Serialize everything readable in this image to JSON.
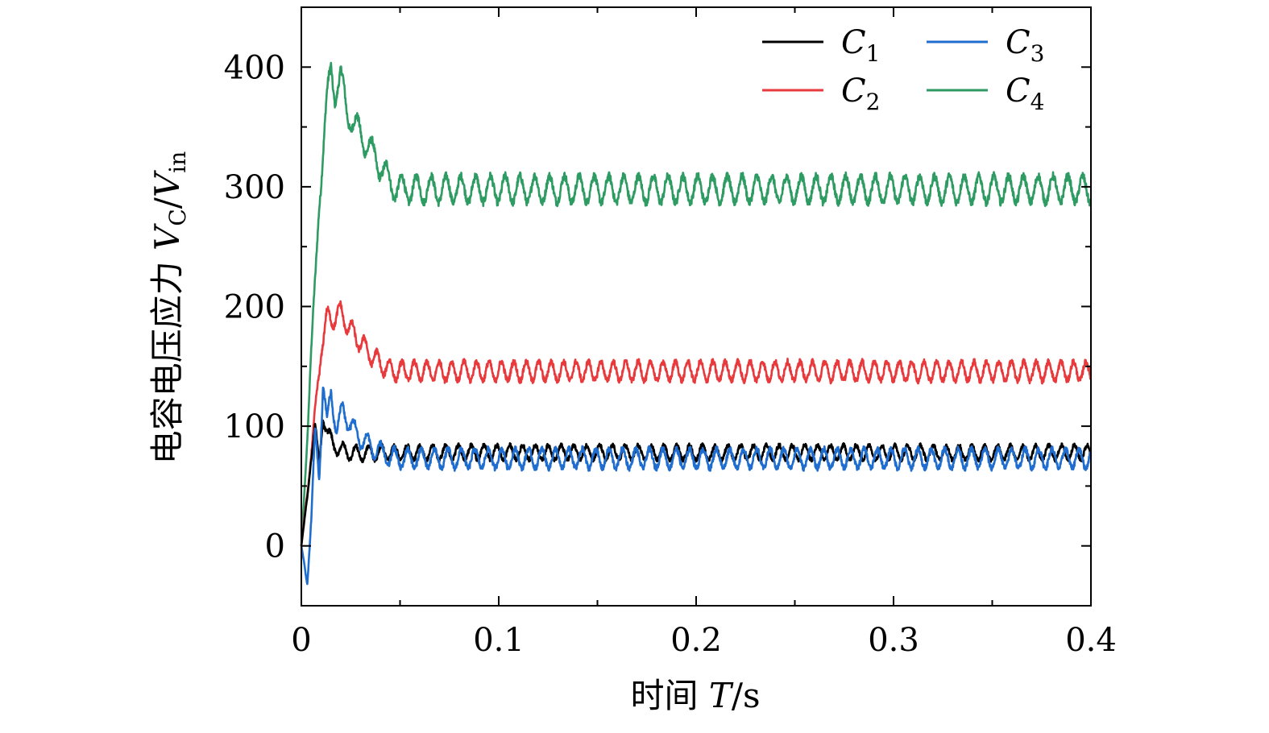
{
  "chart_data": {
    "type": "line",
    "xlabel": "时间 T/s",
    "ylabel": "电容电压应力 VC/Vin",
    "ylabel_parts": {
      "prefix": "电容电压应力 ",
      "v1": "V",
      "sub1": "C",
      "slash": "/",
      "v2": "V",
      "sub2": "in"
    },
    "xlabel_parts": {
      "prefix": "时间 ",
      "var": "T",
      "suffix": "/s"
    },
    "xlim": [
      0,
      0.4
    ],
    "ylim": [
      -50,
      450
    ],
    "x_ticks": [
      0,
      0.1,
      0.2,
      0.3,
      0.4
    ],
    "x_tick_labels": [
      "0",
      "0.1",
      "0.2",
      "0.3",
      "0.4"
    ],
    "x_minor_ticks": [
      0.05,
      0.15,
      0.25,
      0.35
    ],
    "y_ticks": [
      0,
      100,
      200,
      300,
      400
    ],
    "y_tick_labels": [
      "0",
      "100",
      "200",
      "300",
      "400"
    ],
    "y_minor_ticks": [
      -50,
      50,
      150,
      250,
      350,
      450
    ],
    "grid": false,
    "legend_position": "top-right",
    "series": [
      {
        "name": "C1",
        "label_main": "C",
        "label_sub": "1",
        "color": "#000000",
        "points": [
          [
            0,
            0
          ],
          [
            0.003,
            40
          ],
          [
            0.005,
            75
          ],
          [
            0.007,
            100
          ],
          [
            0.009,
            65
          ],
          [
            0.011,
            110
          ],
          [
            0.013,
            95
          ],
          [
            0.016,
            85
          ],
          [
            0.02,
            80
          ],
          [
            0.025,
            78
          ],
          [
            0.03,
            77
          ],
          [
            0.04,
            78
          ],
          [
            0.4,
            78
          ]
        ],
        "steady_value": 78,
        "oscillation_amplitude": 6,
        "oscillation_period": 0.0065
      },
      {
        "name": "C2",
        "label_main": "C",
        "label_sub": "2",
        "color": "#e8393c",
        "points": [
          [
            0,
            0
          ],
          [
            0.004,
            60
          ],
          [
            0.007,
            110
          ],
          [
            0.01,
            165
          ],
          [
            0.013,
            190
          ],
          [
            0.016,
            190
          ],
          [
            0.02,
            195
          ],
          [
            0.025,
            180
          ],
          [
            0.03,
            170
          ],
          [
            0.035,
            160
          ],
          [
            0.04,
            152
          ],
          [
            0.045,
            147
          ],
          [
            0.05,
            146
          ],
          [
            0.4,
            146
          ]
        ],
        "steady_value": 146,
        "oscillation_amplitude": 8,
        "oscillation_period": 0.0063
      },
      {
        "name": "C3",
        "label_main": "C",
        "label_sub": "3",
        "color": "#1f6ecf",
        "points": [
          [
            0,
            0
          ],
          [
            0.003,
            -30
          ],
          [
            0.005,
            20
          ],
          [
            0.007,
            95
          ],
          [
            0.009,
            60
          ],
          [
            0.011,
            135
          ],
          [
            0.013,
            100
          ],
          [
            0.015,
            130
          ],
          [
            0.018,
            95
          ],
          [
            0.021,
            115
          ],
          [
            0.025,
            100
          ],
          [
            0.03,
            90
          ],
          [
            0.035,
            83
          ],
          [
            0.04,
            78
          ],
          [
            0.045,
            74
          ],
          [
            0.05,
            73
          ],
          [
            0.4,
            73
          ]
        ],
        "steady_value": 73,
        "oscillation_amplitude": 8,
        "oscillation_period": 0.0068
      },
      {
        "name": "C4",
        "label_main": "C",
        "label_sub": "4",
        "color": "#2e9b62",
        "points": [
          [
            0,
            0
          ],
          [
            0.003,
            90
          ],
          [
            0.005,
            160
          ],
          [
            0.007,
            220
          ],
          [
            0.009,
            290
          ],
          [
            0.011,
            330
          ],
          [
            0.013,
            370
          ],
          [
            0.015,
            400
          ],
          [
            0.017,
            380
          ],
          [
            0.02,
            390
          ],
          [
            0.023,
            365
          ],
          [
            0.027,
            350
          ],
          [
            0.03,
            345
          ],
          [
            0.035,
            330
          ],
          [
            0.04,
            318
          ],
          [
            0.045,
            303
          ],
          [
            0.05,
            298
          ],
          [
            0.4,
            298
          ]
        ],
        "steady_value": 298,
        "oscillation_amplitude": 11,
        "oscillation_period": 0.0075
      }
    ]
  }
}
